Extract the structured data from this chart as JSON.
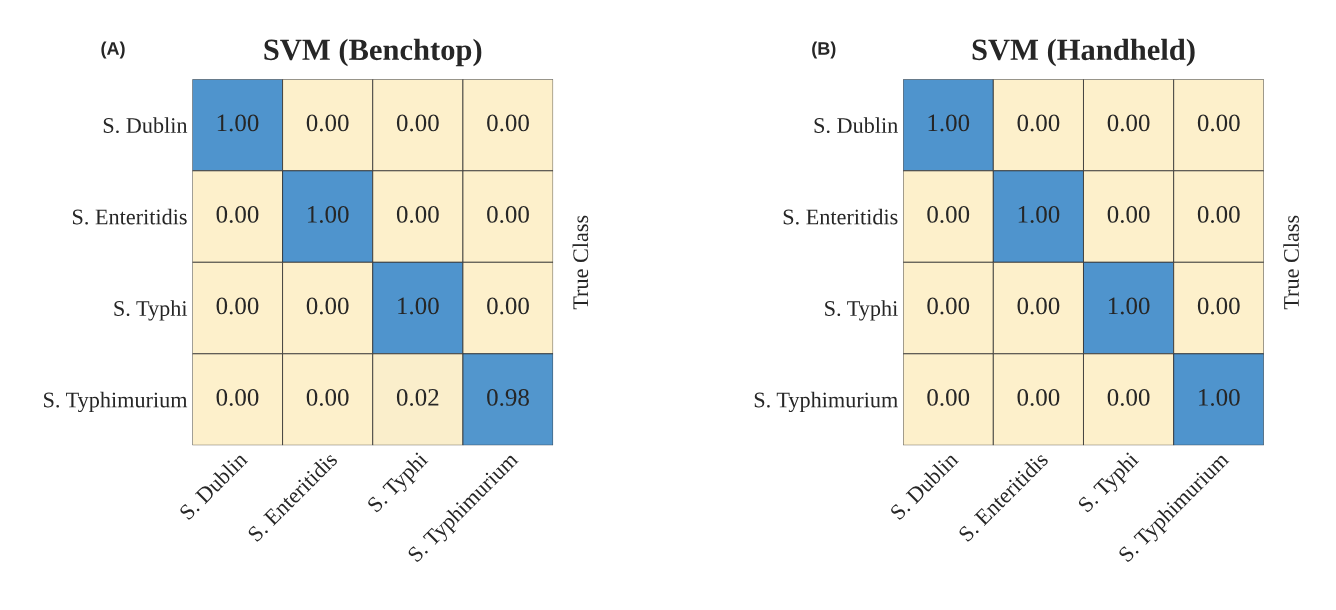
{
  "chart_data": [
    {
      "type": "heatmap",
      "title": "SVM (Benchtop)",
      "ylabel": "True Class",
      "annotations": [
        "(A)"
      ],
      "categories": [
        "S. Dublin",
        "S. Enteritidis",
        "S. Typhi",
        "S. Typhimurium"
      ],
      "y_categories": [
        "S. Dublin",
        "S. Enteritidis",
        "S. Typhi",
        "S. Typhimurium"
      ],
      "cells": [
        [
          1.0,
          0.0,
          0.0,
          0.0
        ],
        [
          0.0,
          1.0,
          0.0,
          0.0
        ],
        [
          0.0,
          0.0,
          1.0,
          0.0
        ],
        [
          0.0,
          0.0,
          0.02,
          0.98
        ]
      ],
      "cell_labels": [
        [
          "1.00",
          "0.00",
          "0.00",
          "0.00"
        ],
        [
          "0.00",
          "1.00",
          "0.00",
          "0.00"
        ],
        [
          "0.00",
          "0.00",
          "1.00",
          "0.00"
        ],
        [
          "0.00",
          "0.00",
          "0.02",
          "0.98"
        ]
      ],
      "colors": [
        "#fdf0cb",
        "#4f94cd"
      ],
      "data_labels": true
    },
    {
      "type": "heatmap",
      "title": "SVM (Handheld)",
      "ylabel": "True Class",
      "annotations": [
        "(B)"
      ],
      "categories": [
        "S. Dublin",
        "S. Enteritidis",
        "S. Typhi",
        "S. Typhimurium"
      ],
      "y_categories": [
        "S. Dublin",
        "S. Enteritidis",
        "S. Typhi",
        "S. Typhimurium"
      ],
      "cells": [
        [
          1.0,
          0.0,
          0.0,
          0.0
        ],
        [
          0.0,
          1.0,
          0.0,
          0.0
        ],
        [
          0.0,
          0.0,
          1.0,
          0.0
        ],
        [
          0.0,
          0.0,
          0.0,
          1.0
        ]
      ],
      "cell_labels": [
        [
          "1.00",
          "0.00",
          "0.00",
          "0.00"
        ],
        [
          "0.00",
          "1.00",
          "0.00",
          "0.00"
        ],
        [
          "0.00",
          "0.00",
          "1.00",
          "0.00"
        ],
        [
          "0.00",
          "0.00",
          "0.00",
          "1.00"
        ]
      ],
      "colors": [
        "#fdf0cb",
        "#4f94cd"
      ],
      "data_labels": true
    }
  ]
}
